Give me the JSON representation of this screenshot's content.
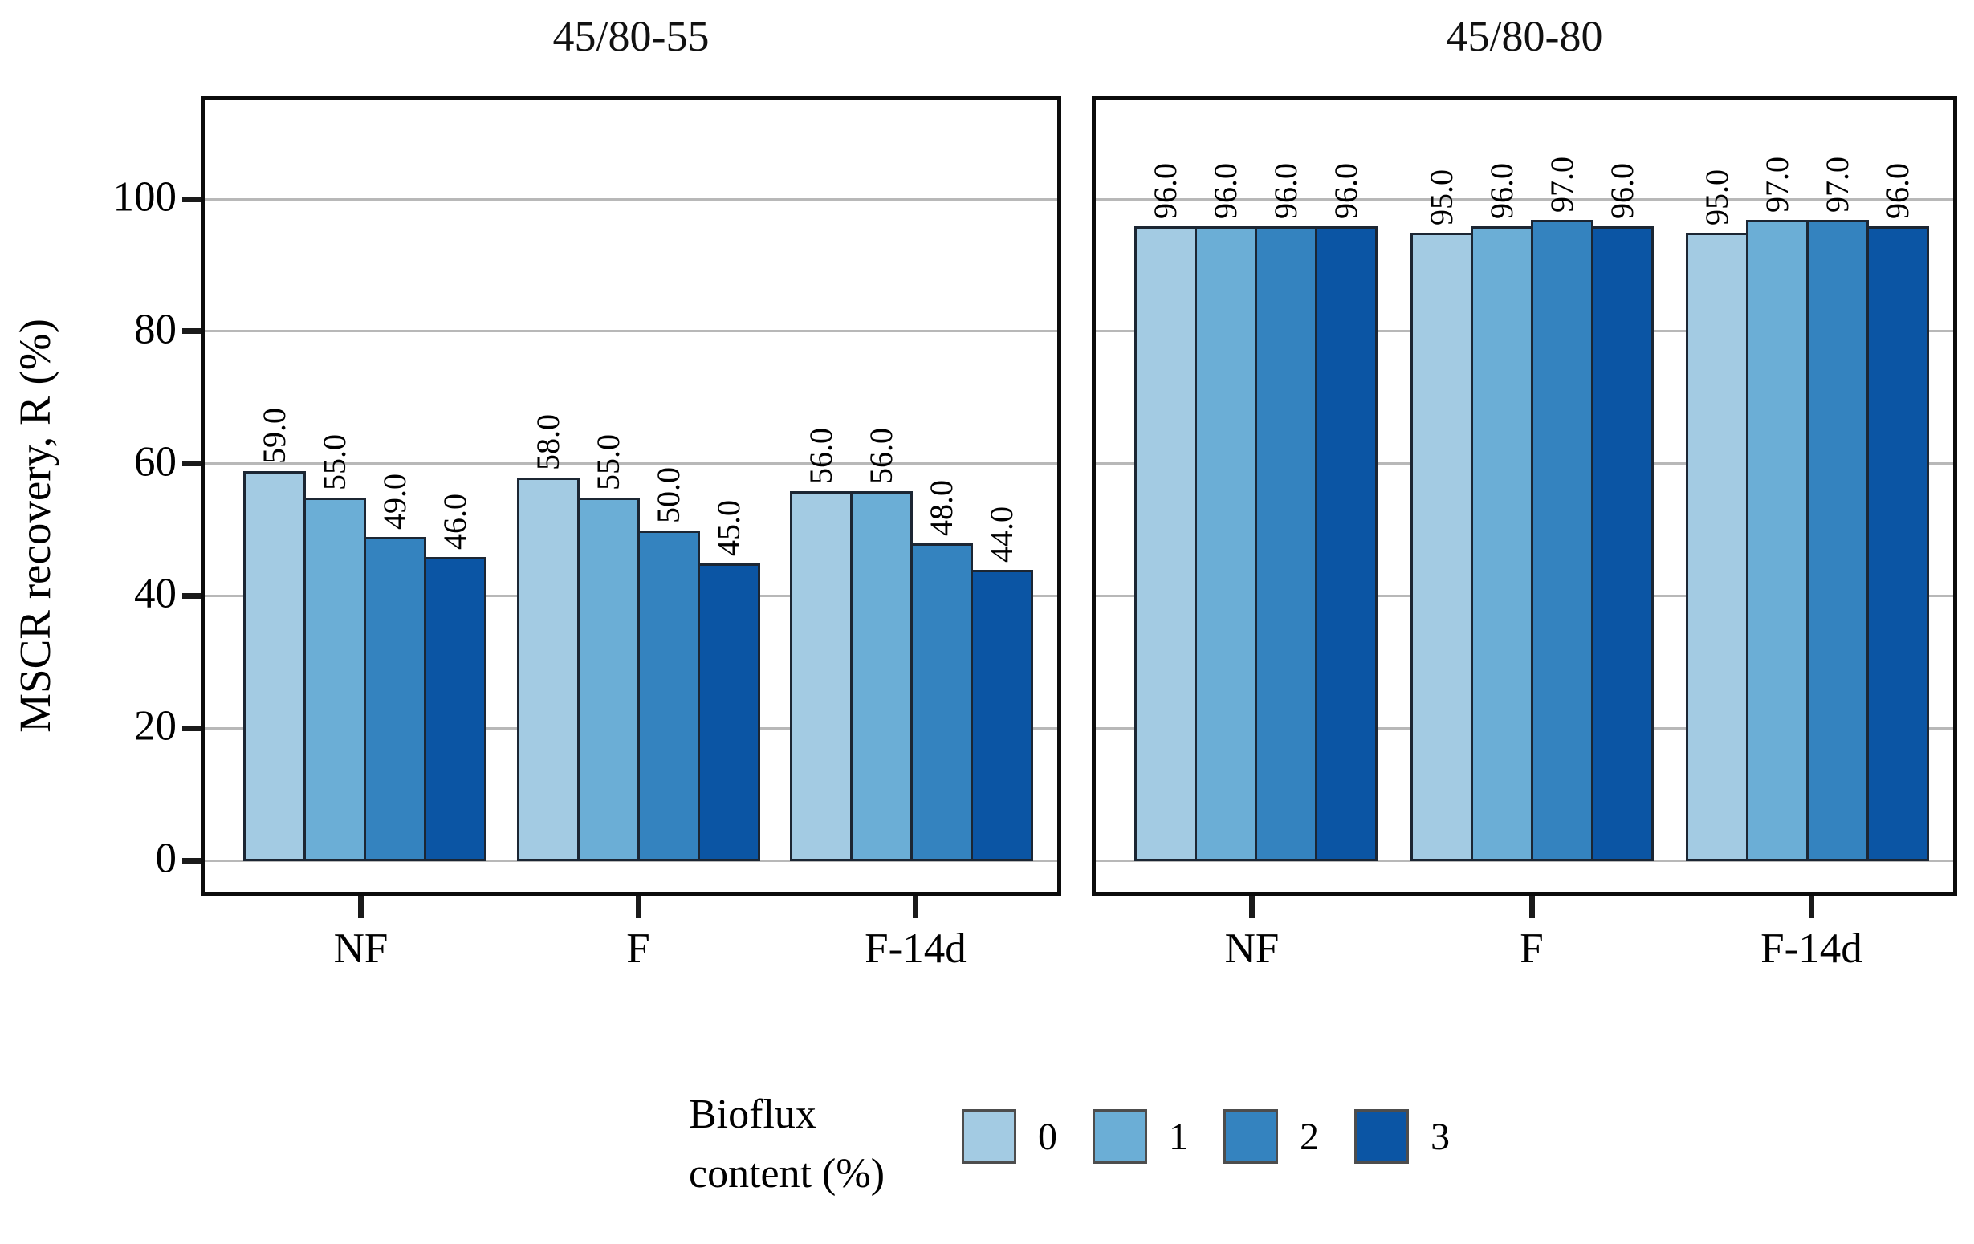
{
  "figure": {
    "ylabel": "MSCR recovery, R (%)",
    "background": "#ffffff",
    "frame_color": "#0c0c0c",
    "grid_color": "#b8b8b8",
    "bar_edge_color": "#1c2633",
    "legend": {
      "title": "Bioflux content (%)",
      "title_lines": [
        "Bioflux",
        "content (%)"
      ],
      "position": "bottom",
      "entries": [
        {
          "label": "0",
          "color": "#a3cbe3"
        },
        {
          "label": "1",
          "color": "#6baed6"
        },
        {
          "label": "2",
          "color": "#3483bf"
        },
        {
          "label": "3",
          "color": "#0b55a4"
        }
      ]
    }
  },
  "chart_data": [
    {
      "type": "bar",
      "title": "45/80-55",
      "xlabel": "",
      "ylabel": "MSCR recovery, R (%)",
      "categories": [
        "NF",
        "F",
        "F-14d"
      ],
      "series": [
        {
          "name": "0",
          "color": "#a3cbe3",
          "values": [
            59.0,
            58.0,
            56.0
          ]
        },
        {
          "name": "1",
          "color": "#6baed6",
          "values": [
            55.0,
            55.0,
            56.0
          ]
        },
        {
          "name": "2",
          "color": "#3483bf",
          "values": [
            49.0,
            50.0,
            48.0
          ]
        },
        {
          "name": "3",
          "color": "#0b55a4",
          "values": [
            46.0,
            45.0,
            44.0
          ]
        }
      ],
      "yticks": [
        0,
        20,
        40,
        60,
        80,
        100
      ],
      "ylim": [
        0,
        115
      ],
      "grid": true,
      "value_labels": true,
      "value_label_decimals": 1,
      "value_label_rotation": 90
    },
    {
      "type": "bar",
      "title": "45/80-80",
      "xlabel": "",
      "ylabel": "MSCR recovery, R (%)",
      "categories": [
        "NF",
        "F",
        "F-14d"
      ],
      "series": [
        {
          "name": "0",
          "color": "#a3cbe3",
          "values": [
            96.0,
            95.0,
            95.0
          ]
        },
        {
          "name": "1",
          "color": "#6baed6",
          "values": [
            96.0,
            96.0,
            97.0
          ]
        },
        {
          "name": "2",
          "color": "#3483bf",
          "values": [
            96.0,
            97.0,
            97.0
          ]
        },
        {
          "name": "3",
          "color": "#0b55a4",
          "values": [
            96.0,
            96.0,
            96.0
          ]
        }
      ],
      "yticks": [
        0,
        20,
        40,
        60,
        80,
        100
      ],
      "ylim": [
        0,
        115
      ],
      "grid": true,
      "value_labels": true,
      "value_label_decimals": 1,
      "value_label_rotation": 90
    }
  ]
}
